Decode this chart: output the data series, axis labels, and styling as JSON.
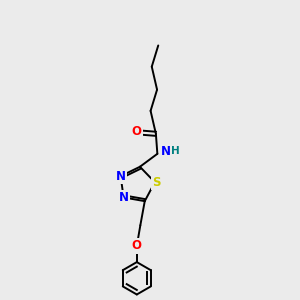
{
  "bg_color": "#ebebeb",
  "atom_colors": {
    "O": "#ff0000",
    "N": "#0000ff",
    "S": "#cccc00",
    "C": "#000000",
    "H": "#008080"
  },
  "bond_color": "#000000",
  "font_size_atoms": 8.5,
  "font_size_H": 7.5,
  "lw": 1.4,
  "ring_r": 0.62,
  "benzene_r": 0.55
}
